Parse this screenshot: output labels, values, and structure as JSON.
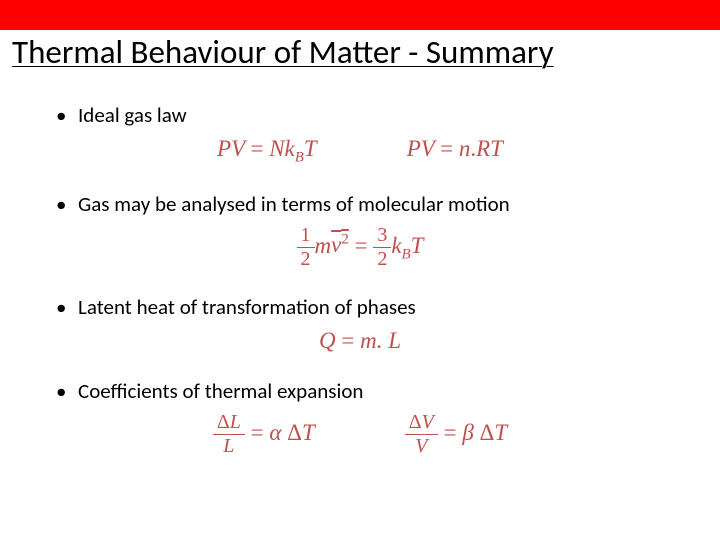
{
  "title": "Thermal Behaviour of Matter - Summary",
  "colors": {
    "title_bar": "#ff0000",
    "equation": "#c0504d",
    "text": "#000000",
    "background": "#ffffff"
  },
  "typography": {
    "title_fontsize": 33,
    "bullet_fontsize": 21,
    "equation_fontsize": 23,
    "title_font": "Calibri",
    "equation_font": "Cambria Math"
  },
  "bullets": {
    "b1": "Ideal gas law",
    "b2": "Gas may be analysed in terms of molecular motion",
    "b3": "Latent heat of transformation of phases",
    "b4": "Coefficients of thermal expansion"
  },
  "equations": {
    "ideal_gas_1": {
      "lhs": "PV",
      "rhs_parts": [
        "N",
        "k",
        "B",
        "T"
      ]
    },
    "ideal_gas_2": {
      "lhs": "PV",
      "rhs_parts": [
        "n",
        ".",
        "RT"
      ]
    },
    "kinetic": {
      "lhs_frac": {
        "num": "1",
        "den": "2"
      },
      "lhs_rest": "m",
      "lhs_overbar": "v",
      "lhs_sup": "2",
      "rhs_frac": {
        "num": "3",
        "den": "2"
      },
      "rhs_rest_parts": [
        "k",
        "B",
        "T"
      ]
    },
    "latent": {
      "lhs": "Q",
      "rhs": "m. L"
    },
    "expansion_linear": {
      "lhs_frac": {
        "num": "ΔL",
        "den": "L"
      },
      "rhs": "α ΔT"
    },
    "expansion_volume": {
      "lhs_frac": {
        "num": "ΔV",
        "den": "V"
      },
      "rhs": "β ΔT"
    }
  }
}
